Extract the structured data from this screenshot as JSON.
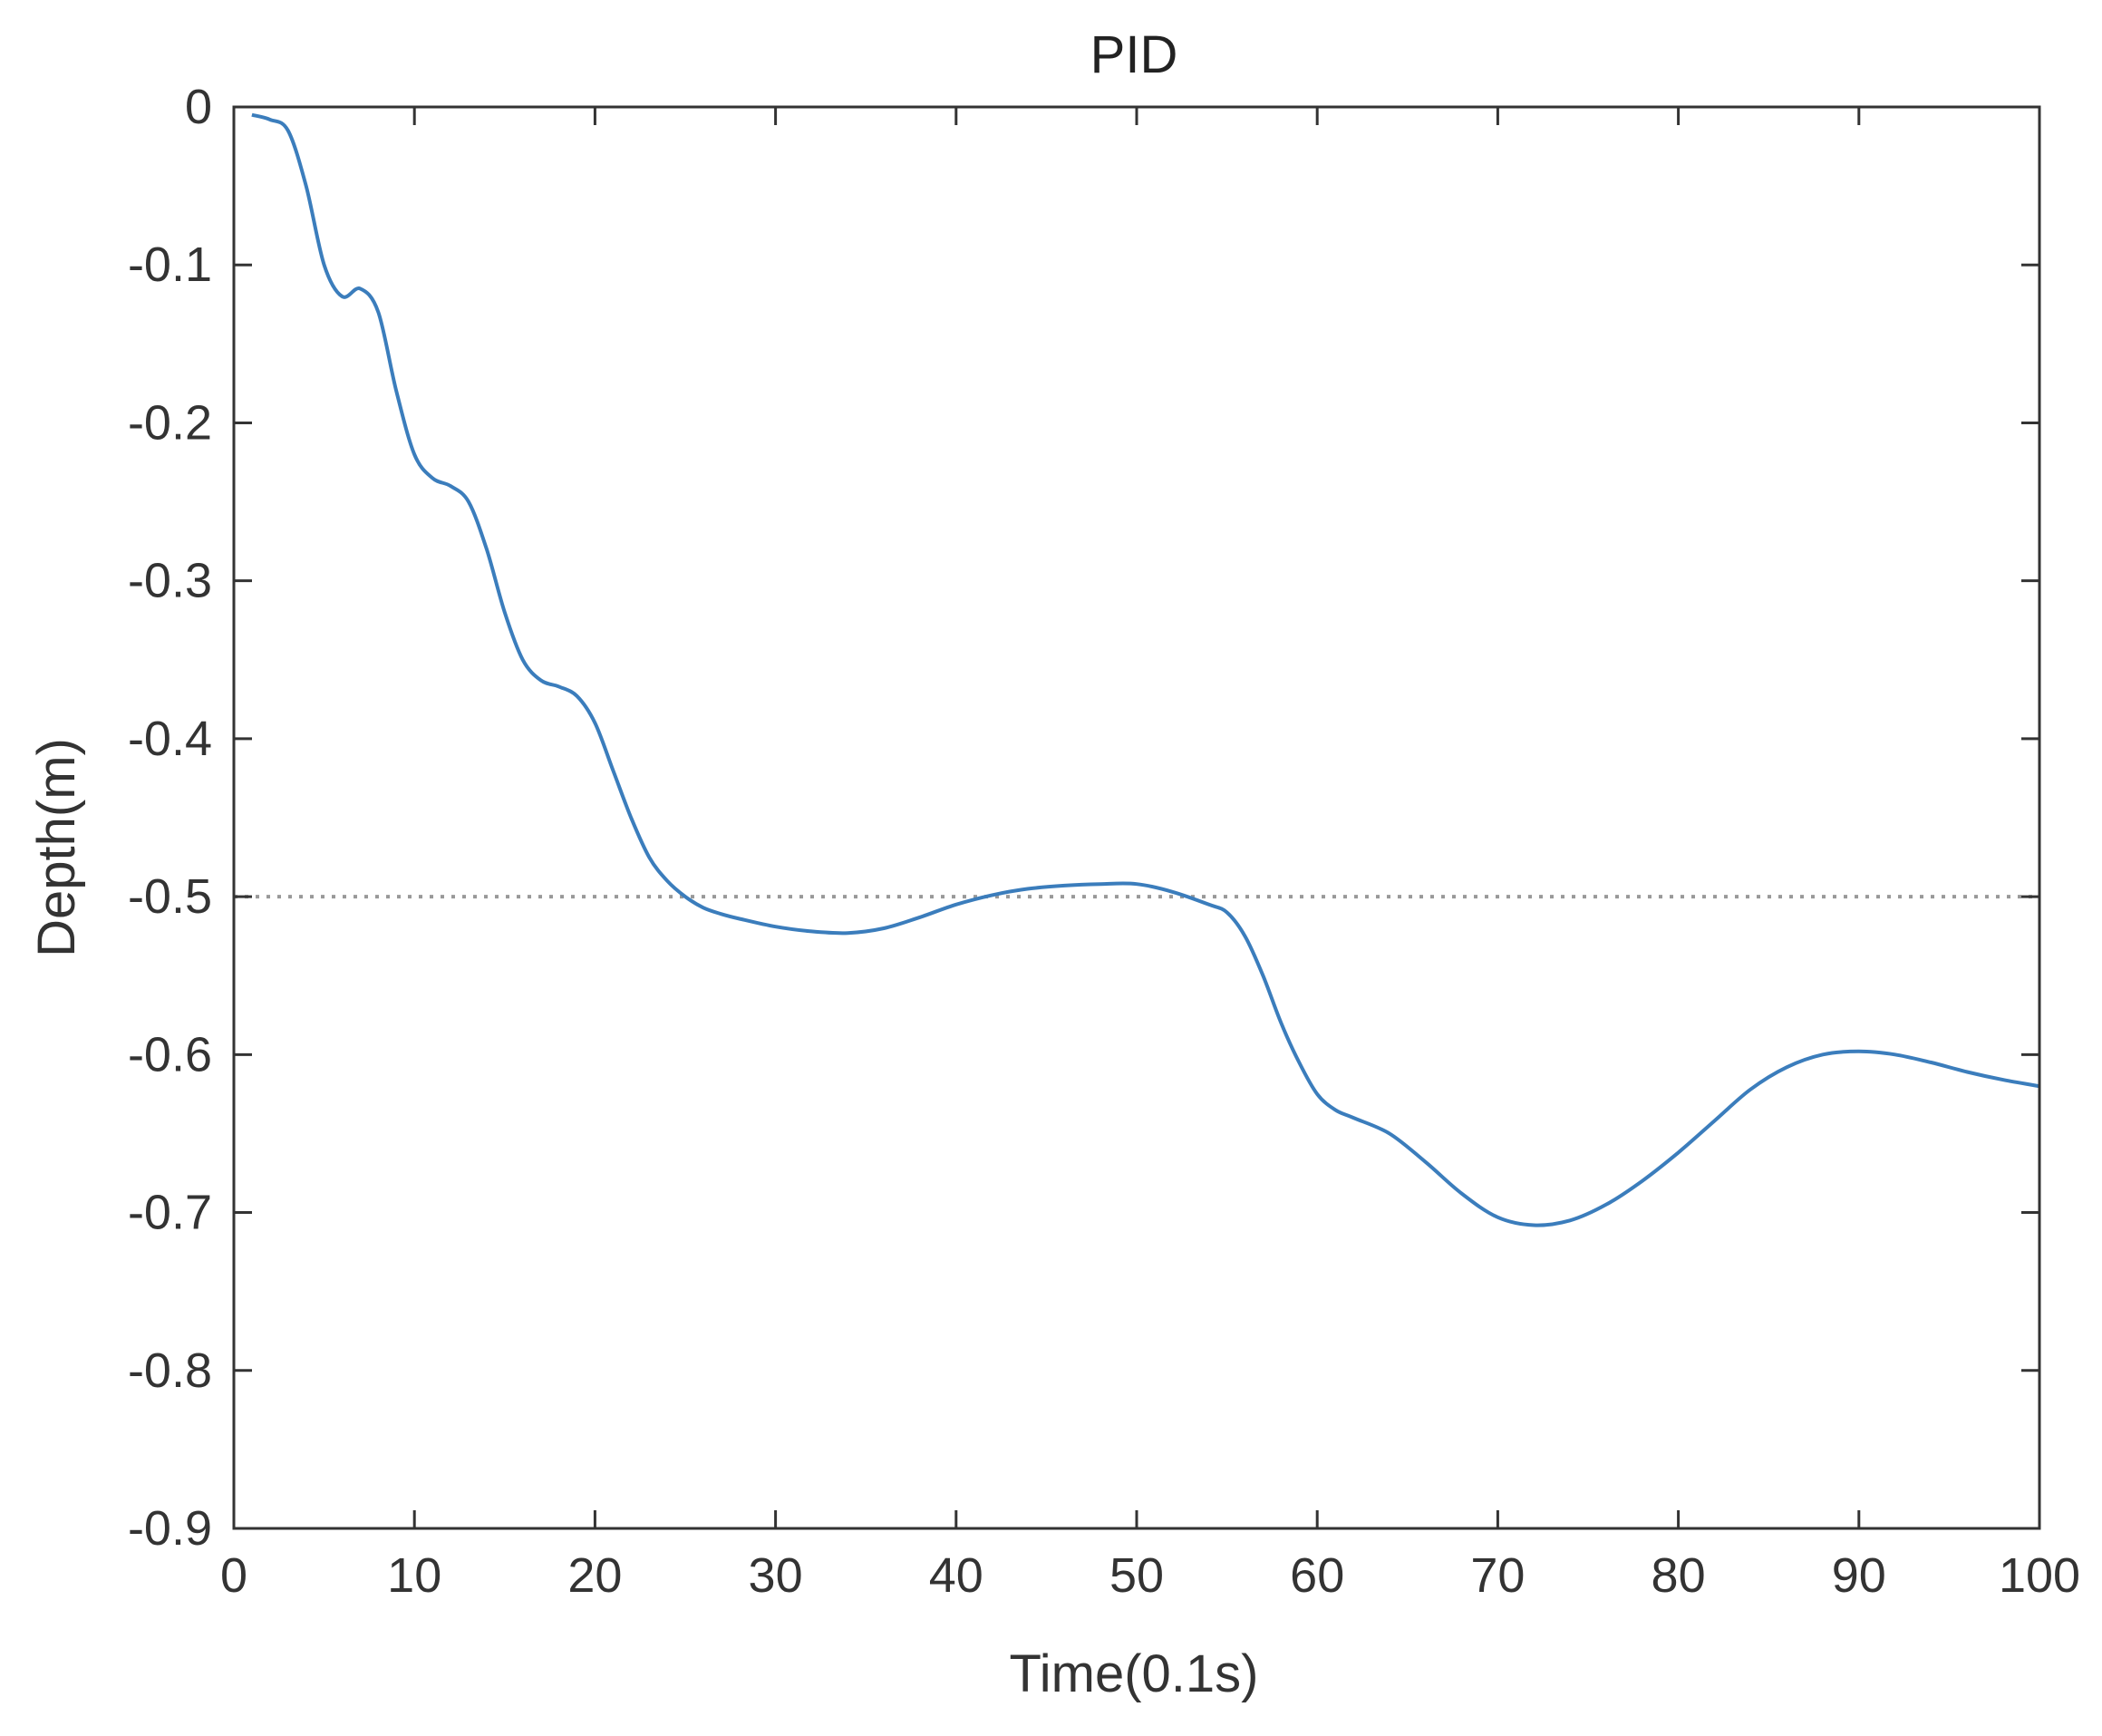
{
  "chart_data": {
    "type": "line",
    "title": "PID",
    "xlabel": "Time(0.1s)",
    "ylabel": "Depth(m)",
    "xlim": [
      0,
      100
    ],
    "ylim": [
      -0.9,
      0
    ],
    "x_ticks": [
      "0",
      "10",
      "20",
      "30",
      "40",
      "50",
      "60",
      "70",
      "80",
      "90",
      "100"
    ],
    "y_ticks": [
      "0",
      "-0.1",
      "-0.2",
      "-0.3",
      "-0.4",
      "-0.5",
      "-0.6",
      "-0.7",
      "-0.8",
      "-0.9"
    ],
    "grid": false,
    "box": true,
    "reference_line": {
      "y": -0.5,
      "style": "dotted",
      "color": "#999999"
    },
    "series": [
      {
        "color": "#3b7dbc",
        "x": [
          1,
          2,
          3,
          4,
          5,
          6,
          7,
          8,
          9,
          10,
          11,
          12,
          13,
          14,
          15,
          16,
          17,
          18,
          19,
          20,
          21,
          22,
          23,
          24,
          25,
          26,
          27,
          28,
          30,
          32,
          34,
          36,
          38,
          40,
          42,
          44,
          46,
          48,
          50,
          52,
          54,
          55,
          56,
          57,
          58,
          59,
          60,
          61,
          62,
          64,
          66,
          68,
          70,
          72,
          74,
          76,
          78,
          80,
          82,
          84,
          86,
          88,
          90,
          92,
          94,
          96,
          98,
          100
        ],
        "y": [
          -0.005,
          -0.008,
          -0.015,
          -0.05,
          -0.1,
          -0.12,
          -0.115,
          -0.13,
          -0.18,
          -0.22,
          -0.235,
          -0.24,
          -0.25,
          -0.28,
          -0.32,
          -0.35,
          -0.363,
          -0.367,
          -0.373,
          -0.39,
          -0.42,
          -0.45,
          -0.475,
          -0.49,
          -0.5,
          -0.507,
          -0.511,
          -0.514,
          -0.519,
          -0.522,
          -0.523,
          -0.52,
          -0.513,
          -0.505,
          -0.499,
          -0.495,
          -0.493,
          -0.492,
          -0.492,
          -0.497,
          -0.505,
          -0.51,
          -0.525,
          -0.55,
          -0.58,
          -0.605,
          -0.625,
          -0.635,
          -0.64,
          -0.65,
          -0.668,
          -0.688,
          -0.703,
          -0.708,
          -0.705,
          -0.695,
          -0.68,
          -0.662,
          -0.642,
          -0.622,
          -0.608,
          -0.6,
          -0.598,
          -0.6,
          -0.605,
          -0.611,
          -0.616,
          -0.62
        ]
      }
    ]
  }
}
